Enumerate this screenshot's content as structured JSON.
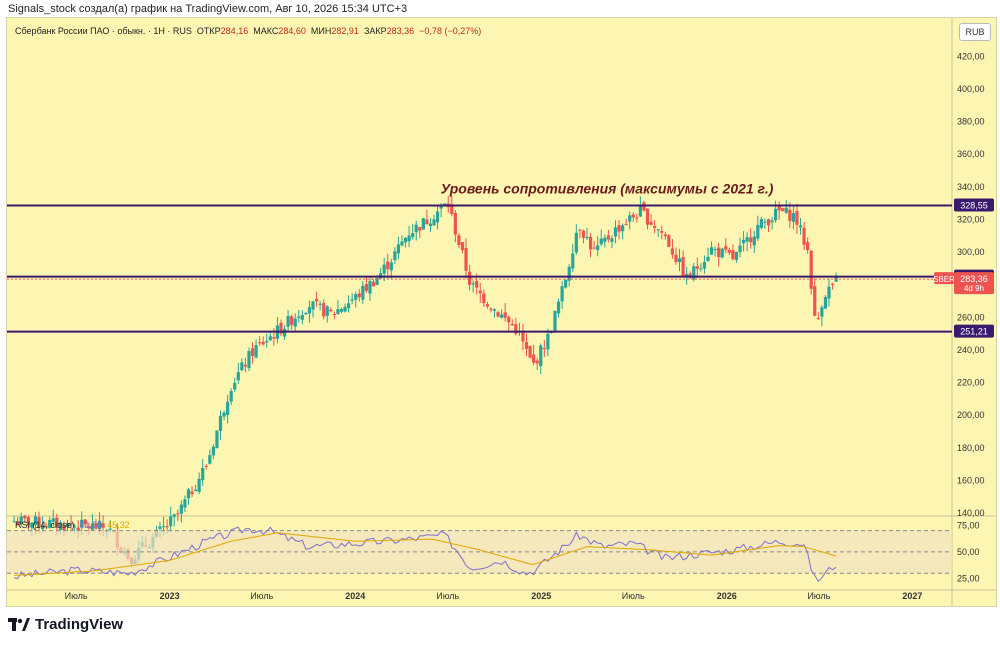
{
  "caption": "Signals_stock создал(а) график на TradingView.com, Авг 10, 2026 15:34 UTC+3",
  "legend": {
    "symbol_text": "Сбербанк России ПАО · обыкн. · 1Н · RUS",
    "open_label": "ОТКР",
    "open": "284,16",
    "high_label": "МАКС",
    "high": "284,60",
    "low_label": "МИН",
    "low": "282,91",
    "close_label": "ЗАКР",
    "close": "283,36",
    "change": "−0,78 (−0,27%)"
  },
  "currency_button": "RUB",
  "rsi_legend": {
    "label": "RSI (14, close)",
    "rsi": "41,50",
    "ma": "45,32"
  },
  "brand": "TradingView",
  "colors": {
    "background": "#fdf6b2",
    "up": "#26a69a",
    "down": "#ef5350",
    "level": "#3a1a6e",
    "rsi": "#7c6fd0",
    "rsi_ma": "#e0a800",
    "annotation": "#6b1b1b"
  },
  "chart_data": {
    "type": "candlestick",
    "timeframe": "1 week",
    "y_range": [
      140,
      430
    ],
    "y_ticks": [
      "420,00",
      "400,00",
      "380,00",
      "360,00",
      "340,00",
      "320,00",
      "300,00",
      "280,00",
      "260,00",
      "240,00",
      "220,00",
      "200,00",
      "180,00",
      "160,00",
      "140,00"
    ],
    "y_tick_values": [
      420,
      400,
      380,
      360,
      340,
      320,
      300,
      280,
      260,
      240,
      220,
      200,
      180,
      160,
      140
    ],
    "x_ticks": [
      "Июль",
      "2023",
      "Июль",
      "2024",
      "Июль",
      "2025",
      "Июль",
      "2026",
      "Июль",
      "2027"
    ],
    "x_tick_dates": [
      "2022-07-01",
      "2023-01-01",
      "2023-07-01",
      "2024-01-01",
      "2024-07-01",
      "2025-01-01",
      "2025-07-01",
      "2026-01-01",
      "2026-07-01",
      "2027-01-01"
    ],
    "x_range": [
      "2022-02-15",
      "2027-03-20"
    ],
    "price_path_dates": [
      "2022-03-01",
      "2022-06-01",
      "2022-09-01",
      "2022-10-15",
      "2022-12-01",
      "2023-01-15",
      "2023-03-15",
      "2023-05-01",
      "2023-06-15",
      "2023-08-15",
      "2023-10-01",
      "2023-11-15",
      "2024-01-01",
      "2024-02-15",
      "2024-03-15",
      "2024-04-15",
      "2024-05-15",
      "2024-07-01",
      "2024-08-15",
      "2024-10-01",
      "2024-11-15",
      "2024-12-15",
      "2025-01-15",
      "2025-02-15",
      "2025-03-15",
      "2025-04-15",
      "2025-06-01",
      "2025-07-15",
      "2025-09-01",
      "2025-10-15",
      "2025-12-01",
      "2026-01-15",
      "2026-03-01",
      "2026-04-15",
      "2026-05-15",
      "2026-06-10",
      "2026-06-25",
      "2026-07-10",
      "2026-08-10"
    ],
    "price_path_values": [
      135,
      133,
      131,
      112,
      125,
      138,
      170,
      218,
      240,
      255,
      268,
      262,
      272,
      285,
      297,
      312,
      318,
      330,
      280,
      265,
      252,
      230,
      248,
      280,
      318,
      300,
      315,
      325,
      310,
      283,
      302,
      296,
      315,
      325,
      322,
      300,
      252,
      274,
      283.36
    ],
    "levels": [
      {
        "value": 328.55,
        "label": "328,55"
      },
      {
        "value": 284.91,
        "label": "284,91"
      },
      {
        "value": 251.21,
        "label": "251,21"
      }
    ],
    "last_price": {
      "symbol": "SBER",
      "value": 283.36,
      "label": "283,36",
      "countdown": "4d 9h"
    },
    "annotation": "Уровень сопротивления (максимумы с 2021 г.)",
    "rsi": {
      "y_range": [
        18,
        80
      ],
      "ticks": [
        "75,00",
        "50,00",
        "25,00"
      ],
      "tick_values": [
        75,
        50,
        25
      ],
      "upper": 70,
      "middle": 50,
      "lower": 30,
      "path_dates": [
        "2022-03-01",
        "2022-07-01",
        "2022-10-15",
        "2023-01-01",
        "2023-03-15",
        "2023-06-01",
        "2023-07-15",
        "2023-10-01",
        "2024-01-01",
        "2024-04-15",
        "2024-06-25",
        "2024-08-15",
        "2024-10-15",
        "2024-12-01",
        "2024-12-20",
        "2025-03-15",
        "2025-05-01",
        "2025-07-01",
        "2025-09-01",
        "2025-11-01",
        "2026-01-15",
        "2026-04-15",
        "2026-06-01",
        "2026-06-25",
        "2026-08-10"
      ],
      "path_values": [
        27,
        33,
        30,
        45,
        60,
        72,
        70,
        55,
        58,
        62,
        66,
        35,
        42,
        30,
        33,
        66,
        55,
        58,
        44,
        48,
        52,
        60,
        58,
        22,
        41.5
      ],
      "ma_dates": [
        "2022-03-01",
        "2022-08-01",
        "2023-01-01",
        "2023-05-01",
        "2023-08-01",
        "2024-01-01",
        "2024-06-01",
        "2024-09-01",
        "2024-12-15",
        "2025-04-01",
        "2025-08-01",
        "2025-12-01",
        "2026-04-15",
        "2026-06-01",
        "2026-08-10"
      ],
      "ma_values": [
        28,
        32,
        42,
        60,
        68,
        60,
        62,
        52,
        38,
        55,
        52,
        47,
        56,
        55,
        45.32
      ]
    }
  }
}
